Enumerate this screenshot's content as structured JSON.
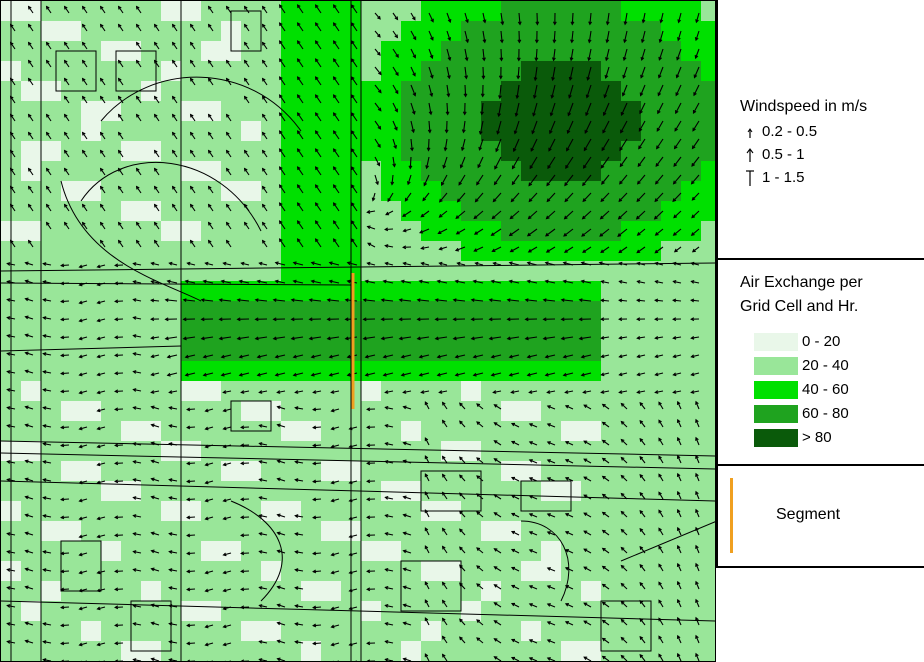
{
  "colors": {
    "bin_0_20": "#e9f7e9",
    "bin_20_40": "#99e699",
    "bin_40_60": "#00e000",
    "bin_60_80": "#1fa31f",
    "bin_80_plus": "#0a5a0a",
    "segment": "#f0a020",
    "arrow": "#000000",
    "road": "#000000"
  },
  "map": {
    "description_icon": "wind-field-map"
  },
  "legend": {
    "wind": {
      "title": "Windspeed in m/s",
      "items": [
        {
          "label": "0.2 - 0.5",
          "icon": "small-arrow-icon"
        },
        {
          "label": "0.5 - 1",
          "icon": "medium-arrow-icon"
        },
        {
          "label": "1 - 1.5",
          "icon": "large-arrow-icon"
        }
      ]
    },
    "air": {
      "title_line1": "Air Exchange per",
      "title_line2": "Grid Cell and Hr.",
      "items": [
        {
          "label": "0 - 20",
          "color": "#e9f7e9"
        },
        {
          "label": "20 - 40",
          "color": "#99e699"
        },
        {
          "label": "40 - 60",
          "color": "#00e000"
        },
        {
          "label": "60 - 80",
          "color": "#1fa31f"
        },
        {
          "label": "> 80",
          "color": "#0a5a0a"
        }
      ]
    },
    "segment": {
      "label": "Segment"
    }
  }
}
